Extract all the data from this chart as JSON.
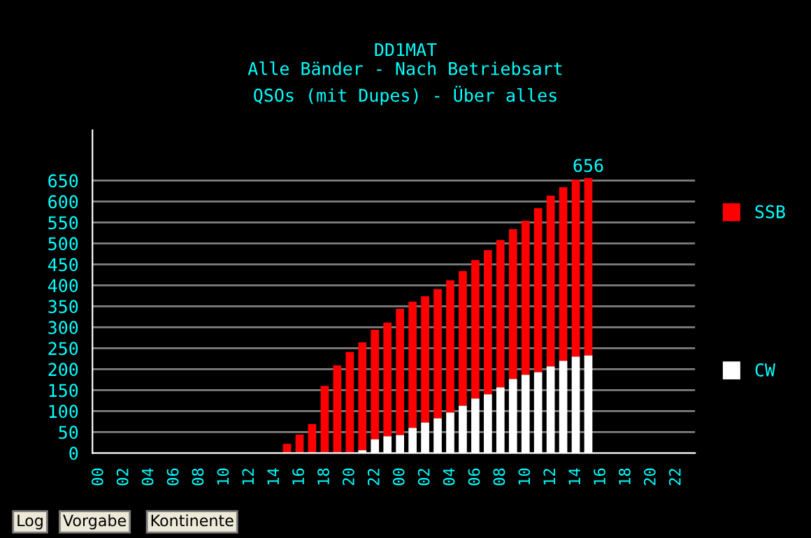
{
  "chart_data": {
    "type": "bar",
    "title": "DD1MAT",
    "subtitle": "Alle Bänder - Nach Betriebsart\nQSOs (mit Dupes) - Über alles",
    "categories": [
      "00",
      null,
      "02",
      null,
      "04",
      null,
      "06",
      null,
      "08",
      null,
      "10",
      null,
      "12",
      null,
      "14",
      null,
      "16",
      null,
      "18",
      null,
      "20",
      null,
      "22",
      null,
      "00",
      null,
      "02",
      null,
      "04",
      null,
      "06",
      null,
      "08",
      null,
      "10",
      null,
      "12",
      null,
      "14",
      null,
      "16",
      null,
      "18",
      null,
      "20",
      null,
      "22",
      null
    ],
    "series": [
      {
        "name": "CW",
        "color": "#ffffff",
        "values": [
          0,
          0,
          0,
          0,
          0,
          0,
          0,
          0,
          0,
          0,
          0,
          0,
          0,
          0,
          0,
          0,
          0,
          0,
          0,
          0,
          0,
          7,
          33,
          40,
          43,
          60,
          73,
          83,
          97,
          113,
          130,
          140,
          157,
          177,
          187,
          193,
          207,
          220,
          230,
          233,
          0,
          0,
          0,
          0,
          0,
          0,
          0,
          0
        ]
      },
      {
        "name": "SSB",
        "color": "#ff0000",
        "values": [
          0,
          0,
          0,
          0,
          0,
          0,
          0,
          0,
          0,
          0,
          0,
          0,
          0,
          0,
          0,
          22,
          44,
          69,
          160,
          209,
          241,
          257,
          261,
          271,
          301,
          301,
          301,
          308,
          315,
          321,
          330,
          344,
          351,
          357,
          367,
          391,
          407,
          414,
          422,
          423,
          0,
          0,
          0,
          0,
          0,
          0,
          0,
          0
        ]
      }
    ],
    "stacked": true,
    "totals": [
      null,
      null,
      null,
      null,
      null,
      null,
      null,
      null,
      null,
      null,
      null,
      null,
      null,
      null,
      null,
      null,
      null,
      null,
      null,
      null,
      null,
      null,
      null,
      null,
      null,
      null,
      null,
      null,
      null,
      null,
      null,
      null,
      null,
      null,
      null,
      null,
      null,
      null,
      null,
      "656",
      null,
      null,
      null,
      null,
      null,
      null,
      null,
      null
    ],
    "ylim": [
      0,
      770
    ],
    "yticks": [
      0,
      50,
      100,
      150,
      200,
      250,
      300,
      350,
      400,
      450,
      500,
      550,
      600,
      650
    ],
    "grid": "y",
    "legend": "right",
    "annotations": [
      "Log",
      "Vorgabe",
      "Kontinente"
    ]
  }
}
